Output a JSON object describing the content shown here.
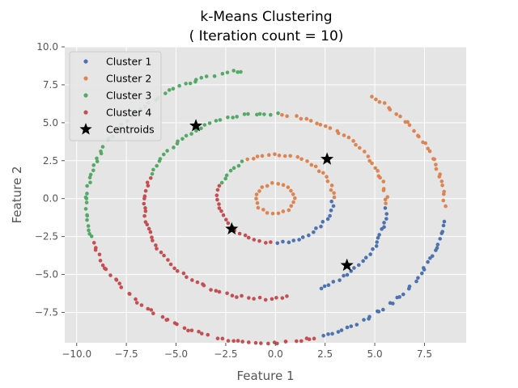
{
  "chart_data": {
    "type": "scatter",
    "title": "k-Means Clustering",
    "subtitle": "( Iteration count = 10)",
    "xlabel": "Feature 1",
    "ylabel": "Feature 2",
    "xlim": [
      -10.6,
      9.6
    ],
    "ylim": [
      -9.5,
      10.0
    ],
    "xticks": [
      -10.0,
      -7.5,
      -5.0,
      -2.5,
      0.0,
      2.5,
      5.0,
      7.5
    ],
    "xtick_labels": [
      "−10.0",
      "−7.5",
      "−5.0",
      "−2.5",
      "0.0",
      "2.5",
      "5.0",
      "7.5"
    ],
    "yticks": [
      -7.5,
      -5.0,
      -2.5,
      0.0,
      2.5,
      5.0,
      7.5,
      10.0
    ],
    "ytick_labels": [
      "−7.5",
      "−5.0",
      "−2.5",
      "0.0",
      "2.5",
      "5.0",
      "7.5",
      "10.0"
    ],
    "grid": true,
    "legend_position": "top-left",
    "background": "#e5e5e5",
    "rings": [
      {
        "cx": -0.5,
        "cy": -0.5,
        "r": 9.0,
        "sector_ranges_deg": [
          [
            287,
            355
          ],
          [
            0,
            55
          ],
          [
            98,
            193
          ],
          [
            193,
            287
          ]
        ]
      },
      {
        "cx": -0.5,
        "cy": -0.5,
        "r": 6.1,
        "sector_ranges_deg": [
          [
            295,
            360
          ],
          [
            0,
            83
          ],
          [
            83,
            160
          ],
          [
            160,
            283
          ]
        ]
      },
      {
        "cx": 0.0,
        "cy": 0.0,
        "r": 2.9,
        "sector_ranges_deg": [
          [
            270,
            358
          ],
          [
            0,
            123
          ],
          [
            123,
            160
          ],
          [
            160,
            270
          ]
        ]
      },
      {
        "cx": 0.0,
        "cy": 0.0,
        "r": 1.0,
        "sector_ranges_deg": [
          [
            0,
            0
          ],
          [
            0,
            360
          ],
          [
            0,
            0
          ],
          [
            0,
            0
          ]
        ]
      }
    ],
    "series": [
      {
        "name": "Cluster 1",
        "color": "#4c72b0"
      },
      {
        "name": "Cluster 2",
        "color": "#dd8452"
      },
      {
        "name": "Cluster 3",
        "color": "#55a868"
      },
      {
        "name": "Cluster 4",
        "color": "#c44e52"
      }
    ],
    "centroids": {
      "name": "Centroids",
      "color": "#000000",
      "points": [
        [
          -4.0,
          4.8
        ],
        [
          2.6,
          2.6
        ],
        [
          -2.2,
          -2.0
        ],
        [
          3.6,
          -4.4
        ]
      ]
    }
  }
}
